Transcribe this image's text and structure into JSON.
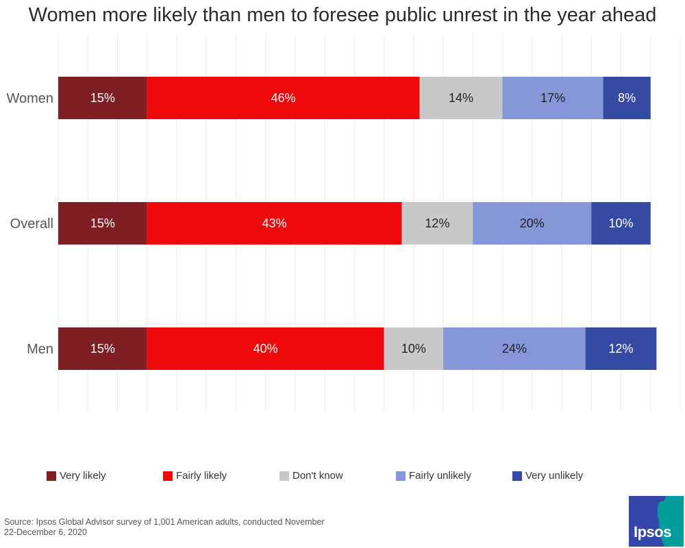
{
  "chart_data": {
    "type": "bar",
    "orientation": "horizontal",
    "stacked": true,
    "title": "Women more likely than men to foresee public unrest in the year ahead",
    "categories": [
      "Women",
      "Overall",
      "Men"
    ],
    "series": [
      {
        "name": "Very likely",
        "color": "#7f1e23",
        "label_color": "#ffffff",
        "values": [
          15,
          15,
          15
        ],
        "labels": [
          "15%",
          "15%",
          "15%"
        ]
      },
      {
        "name": "Fairly likely",
        "color": "#ee0a0a",
        "label_color": "#ffffff",
        "values": [
          46,
          43,
          40
        ],
        "labels": [
          "46%",
          "43%",
          "40%"
        ]
      },
      {
        "name": "Don't know",
        "color": "#c8c8c8",
        "label_color": "#222222",
        "values": [
          14,
          12,
          10
        ],
        "labels": [
          "14%",
          "12%",
          "10%"
        ]
      },
      {
        "name": "Fairly unlikely",
        "color": "#8596d9",
        "label_color": "#222222",
        "values": [
          17,
          20,
          24
        ],
        "labels": [
          "17%",
          "20%",
          "24%"
        ]
      },
      {
        "name": "Very unlikely",
        "color": "#344aa3",
        "label_color": "#ffffff",
        "values": [
          8,
          10,
          12
        ],
        "labels": [
          "8%",
          "10%",
          "12%"
        ]
      }
    ],
    "xlim": [
      0,
      105
    ],
    "grid": true,
    "legend_position": "bottom"
  },
  "source": {
    "line1": "Source: Ipsos Global Advisor survey of 1,001 American adults, conducted November",
    "line2": "22-December 6, 2020"
  },
  "logo": {
    "text": "Ipsos"
  }
}
